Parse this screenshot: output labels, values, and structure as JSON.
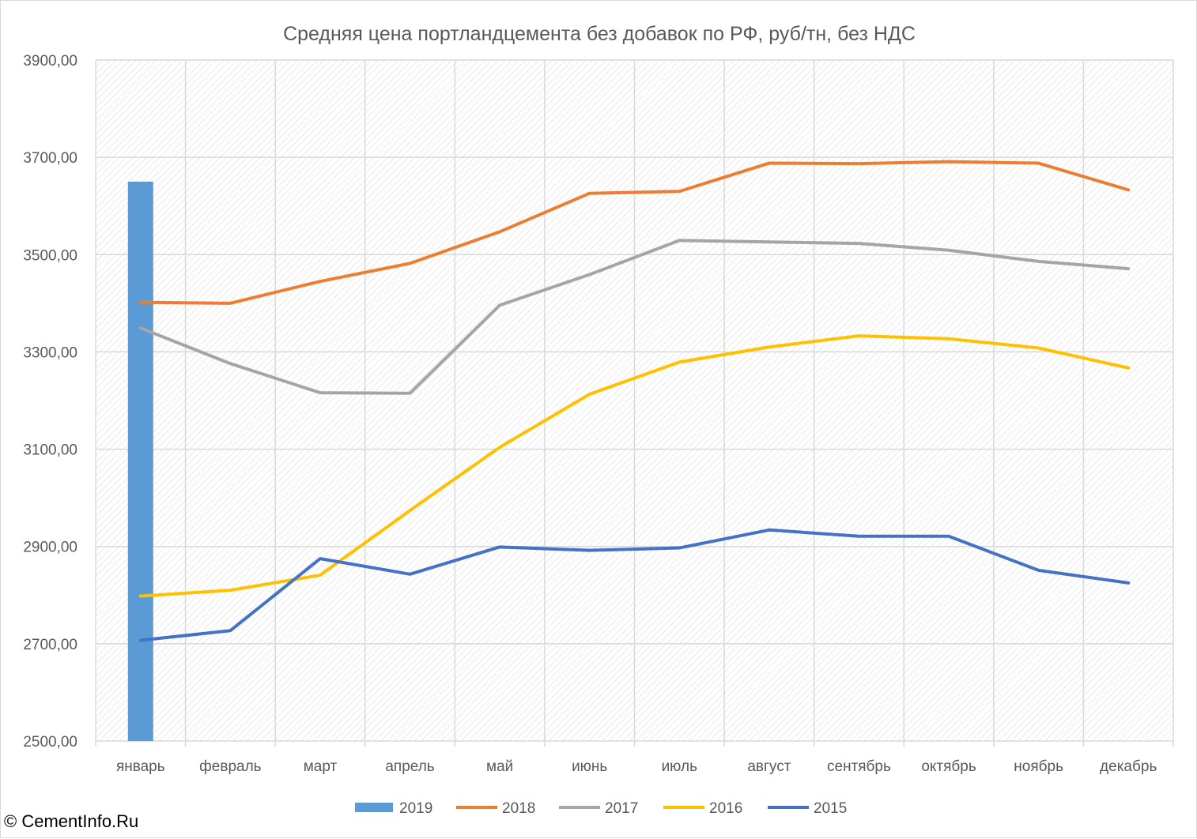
{
  "copyright": "© CementInfo.Ru",
  "chart_data": {
    "type": "line",
    "title": "Средняя цена портландцемента без добавок по РФ, руб/тн, без НДС",
    "xlabel": "",
    "ylabel": "",
    "ylim": [
      2500,
      3900
    ],
    "y_ticks": [
      "2500,00",
      "2700,00",
      "2900,00",
      "3100,00",
      "3300,00",
      "3500,00",
      "3700,00",
      "3900,00"
    ],
    "grid": true,
    "legend_position": "bottom",
    "categories": [
      "январь",
      "февраль",
      "март",
      "апрель",
      "май",
      "июнь",
      "июль",
      "август",
      "сентябрь",
      "октябрь",
      "ноябрь",
      "декабрь"
    ],
    "series": [
      {
        "name": "2019",
        "kind": "bar",
        "color": "#5b9bd5",
        "values": [
          3650,
          null,
          null,
          null,
          null,
          null,
          null,
          null,
          null,
          null,
          null,
          null
        ]
      },
      {
        "name": "2018",
        "kind": "line",
        "color": "#ed7d31",
        "values": [
          3402,
          3400,
          3445,
          3482,
          3547,
          3626,
          3630,
          3688,
          3687,
          3691,
          3688,
          3633
        ]
      },
      {
        "name": "2017",
        "kind": "line",
        "color": "#a5a5a5",
        "values": [
          3349,
          3276,
          3216,
          3215,
          3396,
          3459,
          3529,
          3526,
          3523,
          3509,
          3486,
          3471
        ]
      },
      {
        "name": "2016",
        "kind": "line",
        "color": "#ffc000",
        "values": [
          2798,
          2810,
          2841,
          2974,
          3104,
          3213,
          3279,
          3310,
          3333,
          3327,
          3308,
          3267
        ]
      },
      {
        "name": "2015",
        "kind": "line",
        "color": "#4472c4",
        "values": [
          2707,
          2727,
          2875,
          2843,
          2899,
          2892,
          2897,
          2934,
          2921,
          2921,
          2851,
          2825
        ]
      }
    ]
  }
}
